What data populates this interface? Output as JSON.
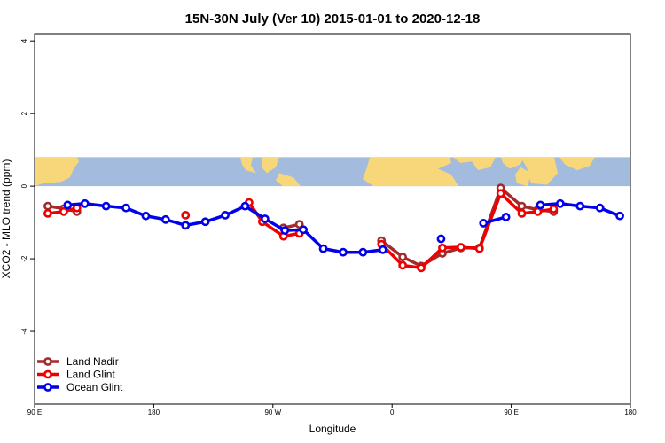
{
  "chart_data": {
    "type": "line",
    "title": "15N-30N July (Ver 10)   2015-01-01 to 2020-12-18",
    "xlabel": "Longitude",
    "ylabel": "XCO2 - MLO trend (ppm)",
    "xlim": [
      0,
      450
    ],
    "ylim": [
      -6,
      4.2
    ],
    "x_ticks": [
      {
        "value": 0,
        "label": "90 E"
      },
      {
        "value": 90,
        "label": "180"
      },
      {
        "value": 180,
        "label": "90 W"
      },
      {
        "value": 270,
        "label": "0"
      },
      {
        "value": 360,
        "label": "90 E"
      },
      {
        "value": 450,
        "label": "180"
      }
    ],
    "y_ticks": [
      {
        "value": 4,
        "label": "4"
      },
      {
        "value": 2,
        "label": "2"
      },
      {
        "value": 0,
        "label": "0"
      },
      {
        "value": -2,
        "label": "-2"
      },
      {
        "value": -4,
        "label": "-4"
      }
    ],
    "background_map": "world map strip (land/ocean)",
    "map_band_y": [
      0,
      0.8
    ],
    "legend_position": "bottom-left",
    "series": [
      {
        "name": "Land Nadir",
        "color": "#a52a2a",
        "segments": [
          [
            [
              10,
              -0.55
            ],
            [
              22,
              -0.62
            ],
            [
              32,
              -0.7
            ]
          ],
          [
            [
              188,
              -1.15
            ],
            [
              200,
              -1.05
            ]
          ],
          [
            [
              262,
              -1.5
            ],
            [
              278,
              -1.95
            ],
            [
              292,
              -2.2
            ],
            [
              308,
              -1.85
            ],
            [
              322,
              -1.7
            ],
            [
              336,
              -1.7
            ],
            [
              352,
              -0.05
            ],
            [
              368,
              -0.55
            ],
            [
              380,
              -0.65
            ],
            [
              392,
              -0.7
            ]
          ]
        ]
      },
      {
        "name": "Land Glint",
        "color": "#ee0000",
        "segments": [
          [
            [
              10,
              -0.75
            ],
            [
              22,
              -0.7
            ],
            [
              32,
              -0.6
            ]
          ],
          [
            [
              114,
              -0.8
            ]
          ],
          [
            [
              162,
              -0.45
            ],
            [
              172,
              -0.98
            ],
            [
              188,
              -1.38
            ],
            [
              200,
              -1.3
            ]
          ],
          [
            [
              262,
              -1.6
            ],
            [
              278,
              -2.18
            ],
            [
              292,
              -2.25
            ],
            [
              308,
              -1.7
            ],
            [
              322,
              -1.68
            ],
            [
              336,
              -1.72
            ],
            [
              352,
              -0.2
            ],
            [
              368,
              -0.75
            ],
            [
              380,
              -0.7
            ],
            [
              392,
              -0.63
            ]
          ]
        ]
      },
      {
        "name": "Ocean Glint",
        "color": "#0000ee",
        "segments": [
          [
            [
              25,
              -0.52
            ],
            [
              38,
              -0.48
            ],
            [
              54,
              -0.55
            ],
            [
              69,
              -0.6
            ],
            [
              84,
              -0.82
            ],
            [
              99,
              -0.92
            ],
            [
              114,
              -1.08
            ],
            [
              129,
              -0.98
            ],
            [
              144,
              -0.8
            ],
            [
              159,
              -0.55
            ],
            [
              174,
              -0.9
            ],
            [
              189,
              -1.22
            ],
            [
              203,
              -1.2
            ],
            [
              218,
              -1.72
            ],
            [
              233,
              -1.82
            ],
            [
              248,
              -1.82
            ],
            [
              263,
              -1.75
            ]
          ],
          [
            [
              307,
              -1.45
            ]
          ],
          [
            [
              339,
              -1.02
            ],
            [
              356,
              -0.85
            ]
          ],
          [
            [
              382,
              -0.52
            ],
            [
              397,
              -0.48
            ],
            [
              412,
              -0.55
            ],
            [
              427,
              -0.6
            ],
            [
              442,
              -0.82
            ]
          ]
        ]
      }
    ]
  }
}
